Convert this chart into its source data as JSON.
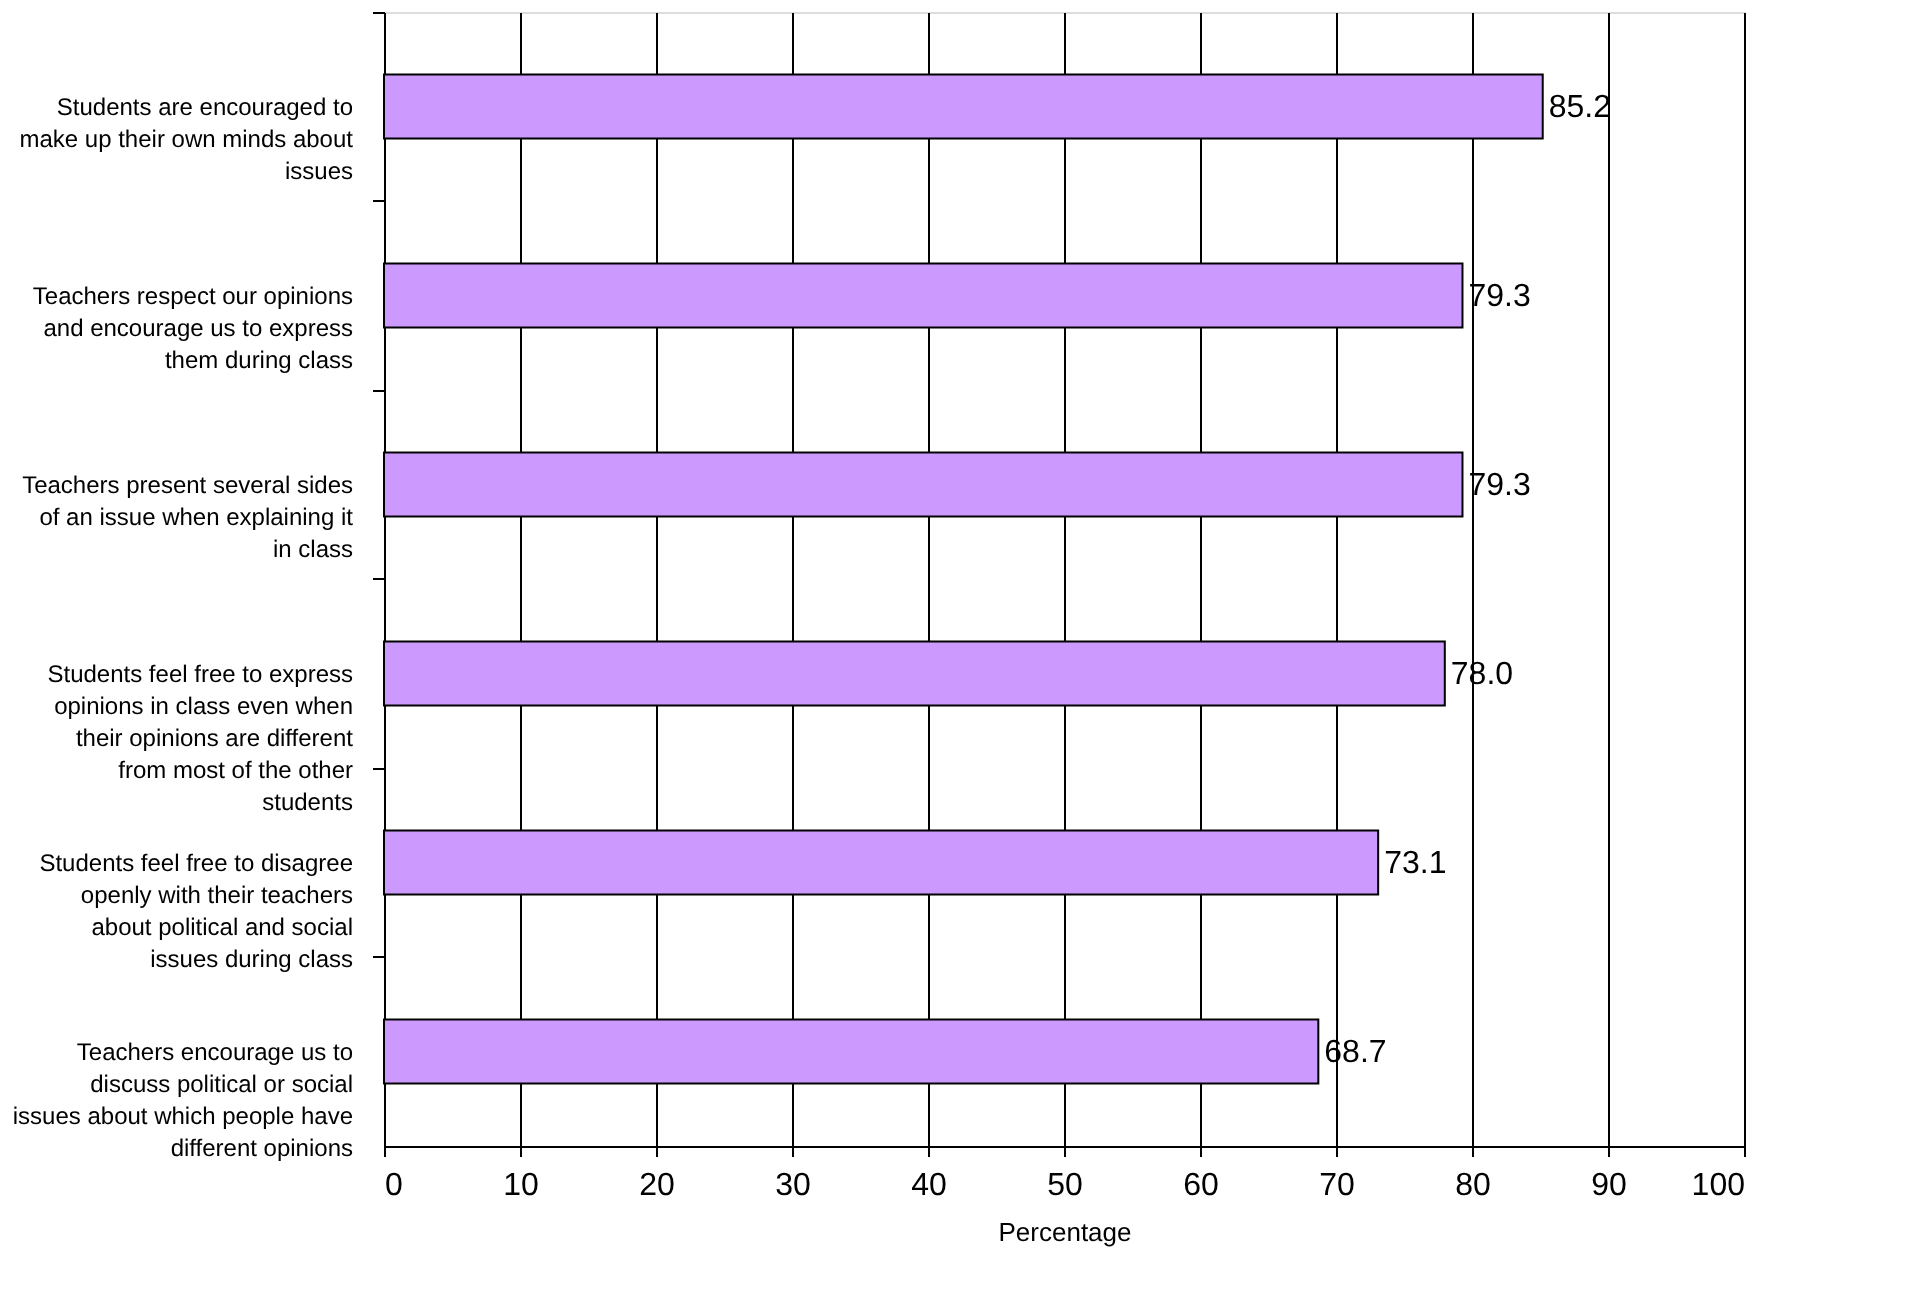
{
  "chart_data": {
    "type": "bar",
    "orientation": "horizontal",
    "xlabel": "Percentage",
    "categories": [
      "Students are encouraged to make up their own minds about issues",
      "Teachers respect our opinions and encourage us to express them during class",
      "Teachers present several sides of an issue when explaining it in class",
      "Students feel free to express opinions in class even when their opinions are different from most of the other students",
      "Students feel free to disagree openly with their teachers about political and social issues during class",
      "Teachers encourage us to discuss political or social issues about which people have different opinions"
    ],
    "values": [
      85.2,
      79.3,
      79.3,
      78.0,
      73.1,
      68.7
    ],
    "value_labels": [
      "85.2",
      "79.3",
      "79.3",
      "78.0",
      "73.1",
      "68.7"
    ],
    "color": "#cc99ff",
    "xlim": [
      0,
      100
    ],
    "xticks": [
      0,
      10,
      20,
      30,
      40,
      50,
      60,
      70,
      80,
      90,
      100
    ],
    "grid": "x",
    "legend": false
  }
}
